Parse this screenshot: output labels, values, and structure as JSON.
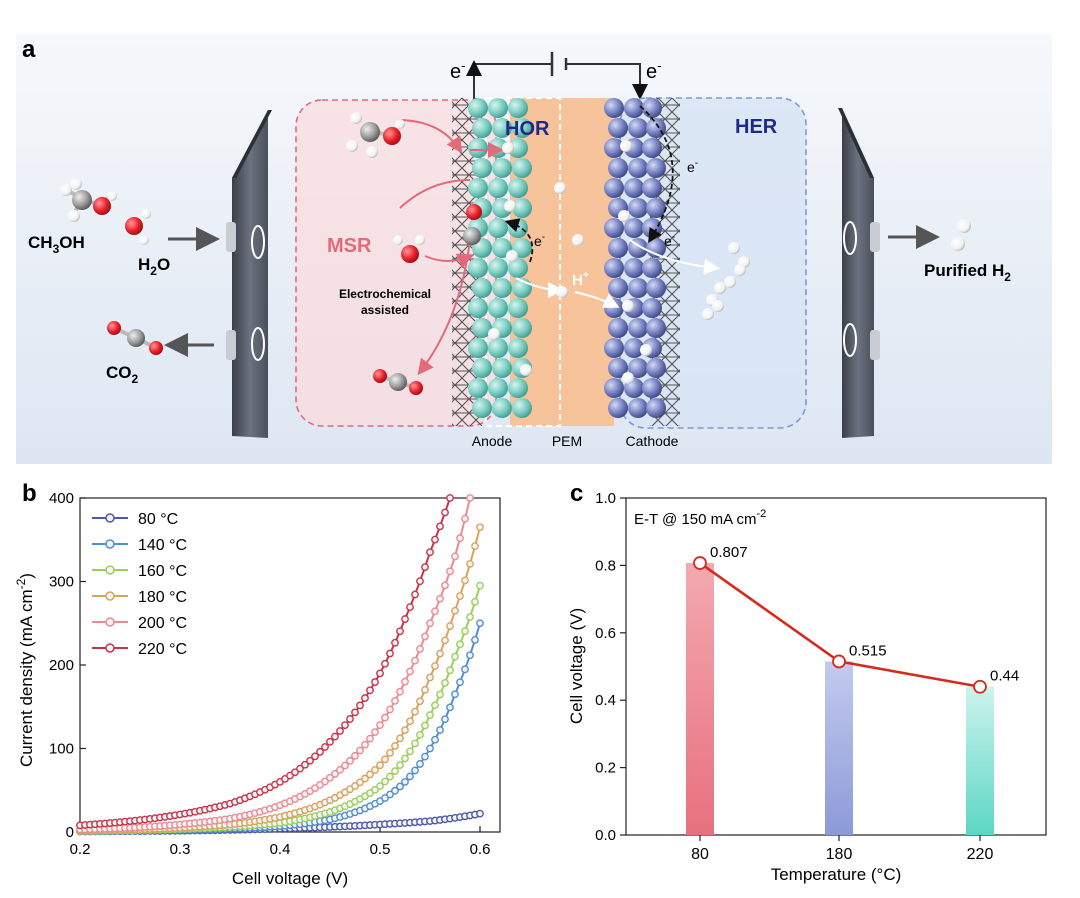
{
  "panel_a": {
    "letter": "a",
    "electron": "e",
    "electron_sup": "-",
    "hor": "HOR",
    "her": "HER",
    "msr": "MSR",
    "assist_line1": "Electrochemical",
    "assist_line2": "assisted",
    "proton": "H",
    "proton_sup": "+",
    "ch3oh": {
      "a": "CH",
      "sub": "3",
      "b": "OH"
    },
    "h2o": {
      "a": "H",
      "sub": "2",
      "b": "O"
    },
    "co2": {
      "a": "CO",
      "sub": "2"
    },
    "purified": {
      "a": "Purified H",
      "sub": "2"
    },
    "anode": "Anode",
    "pem": "PEM",
    "cathode": "Cathode",
    "colors": {
      "anode_sphere": "#7ecfc4",
      "cathode_sphere": "#7b86c4",
      "pem": "#f7c39a",
      "msr": "#e36a7a",
      "hor_her": "#1e2a8a",
      "oxygen": "#e8202a",
      "carbon": "#9a9a9a"
    }
  },
  "chart_data": [
    {
      "type": "line",
      "panel_letter": "b",
      "xlabel": "Cell voltage (V)",
      "ylabel": {
        "a": "Current density (mA cm",
        "sup": "-2",
        "b": ")"
      },
      "xlim": [
        0.2,
        0.62
      ],
      "ylim": [
        0,
        400
      ],
      "xticks": [
        "0.2",
        "0.3",
        "0.4",
        "0.5",
        "0.6"
      ],
      "yticks": [
        "0",
        "100",
        "200",
        "300",
        "400"
      ],
      "legend_position": "top-left",
      "series": [
        {
          "name": "80 °C",
          "color": "#4a5aa8",
          "points": [
            [
              0.2,
              0.6
            ],
            [
              0.25,
              1
            ],
            [
              0.3,
              1.5
            ],
            [
              0.35,
              2.5
            ],
            [
              0.4,
              4
            ],
            [
              0.45,
              6
            ],
            [
              0.5,
              9
            ],
            [
              0.55,
              13
            ],
            [
              0.6,
              22
            ]
          ]
        },
        {
          "name": "140 °C",
          "color": "#4f8fd0",
          "points": [
            [
              0.2,
              1
            ],
            [
              0.25,
              1.5
            ],
            [
              0.3,
              2.5
            ],
            [
              0.35,
              4
            ],
            [
              0.4,
              7
            ],
            [
              0.45,
              15
            ],
            [
              0.5,
              37
            ],
            [
              0.525,
              60
            ],
            [
              0.55,
              100
            ],
            [
              0.575,
              165
            ],
            [
              0.6,
              250
            ]
          ]
        },
        {
          "name": "160 °C",
          "color": "#9ccf5a",
          "points": [
            [
              0.2,
              1
            ],
            [
              0.25,
              2
            ],
            [
              0.3,
              3.5
            ],
            [
              0.35,
              6
            ],
            [
              0.4,
              11
            ],
            [
              0.45,
              24
            ],
            [
              0.5,
              55
            ],
            [
              0.525,
              88
            ],
            [
              0.55,
              140
            ],
            [
              0.575,
              210
            ],
            [
              0.6,
              295
            ]
          ]
        },
        {
          "name": "180 °C",
          "color": "#d8a25c",
          "points": [
            [
              0.2,
              1.5
            ],
            [
              0.25,
              3
            ],
            [
              0.3,
              5
            ],
            [
              0.35,
              9
            ],
            [
              0.4,
              18
            ],
            [
              0.45,
              38
            ],
            [
              0.5,
              80
            ],
            [
              0.525,
              122
            ],
            [
              0.55,
              185
            ],
            [
              0.575,
              265
            ],
            [
              0.6,
              365
            ]
          ]
        },
        {
          "name": "200 °C",
          "color": "#ec8a94",
          "points": [
            [
              0.2,
              3
            ],
            [
              0.25,
              5
            ],
            [
              0.3,
              9
            ],
            [
              0.35,
              16
            ],
            [
              0.4,
              32
            ],
            [
              0.45,
              65
            ],
            [
              0.5,
              128
            ],
            [
              0.525,
              180
            ],
            [
              0.55,
              250
            ],
            [
              0.575,
              330
            ],
            [
              0.59,
              400
            ]
          ]
        },
        {
          "name": "220 °C",
          "color": "#c8334a",
          "points": [
            [
              0.2,
              8
            ],
            [
              0.25,
              13
            ],
            [
              0.3,
              21
            ],
            [
              0.35,
              34
            ],
            [
              0.4,
              60
            ],
            [
              0.45,
              108
            ],
            [
              0.5,
              190
            ],
            [
              0.525,
              255
            ],
            [
              0.55,
              335
            ],
            [
              0.57,
              400
            ]
          ]
        }
      ]
    },
    {
      "type": "bar",
      "panel_letter": "c",
      "annotation": {
        "a": "E-T @ 150 mA cm",
        "sup": "-2"
      },
      "xlabel": "Temperature (°C)",
      "ylabel": "Cell voltage (V)",
      "categories": [
        "80",
        "180",
        "220"
      ],
      "values": [
        0.807,
        0.515,
        0.44
      ],
      "value_labels": [
        "0.807",
        "0.515",
        "0.44"
      ],
      "ylim": [
        0,
        1.0
      ],
      "yticks": [
        "0.0",
        "0.2",
        "0.4",
        "0.6",
        "0.8",
        "1.0"
      ],
      "bar_colors": [
        "#e8707e",
        "#8c9ad8",
        "#5cd6c4"
      ],
      "line_color": "#d62a1e"
    }
  ]
}
